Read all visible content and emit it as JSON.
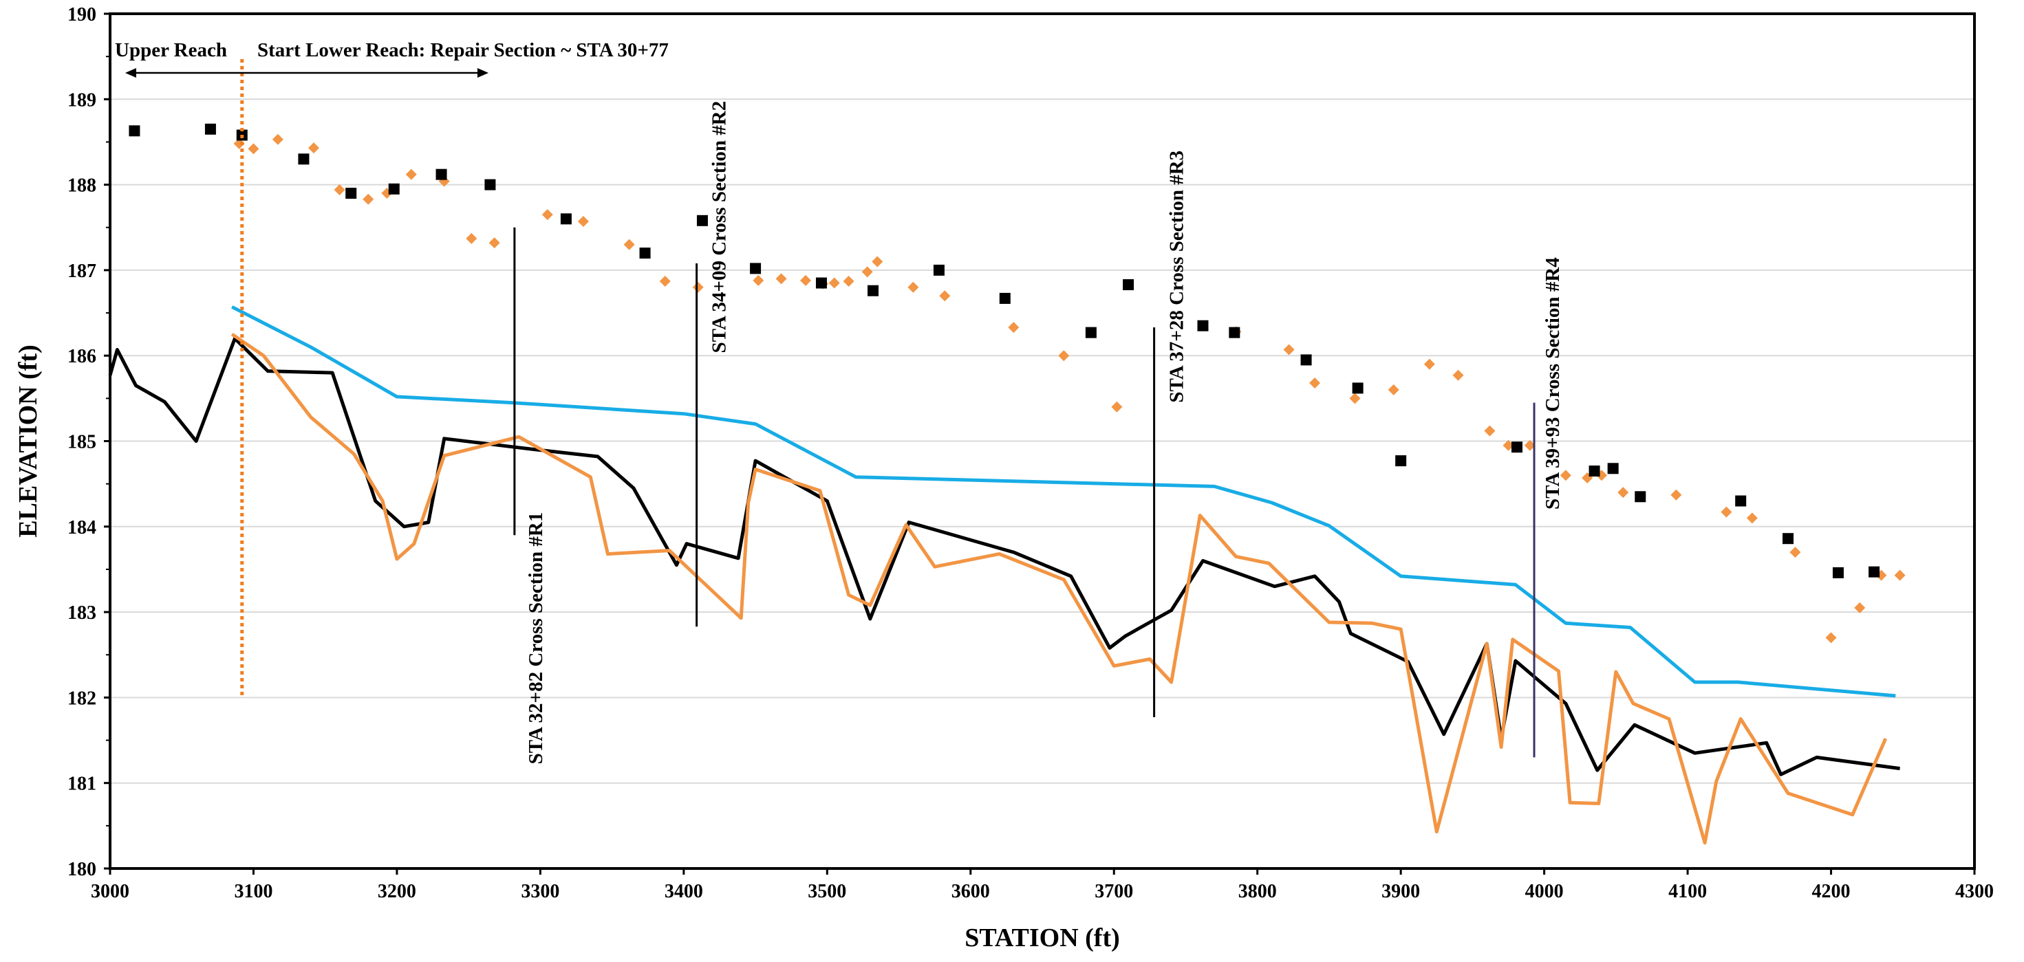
{
  "chart_data": {
    "type": "line",
    "title": "",
    "xlabel": "STATION (ft)",
    "ylabel": "ELEVATION (ft)",
    "xlim": [
      3000,
      4300
    ],
    "ylim": [
      180,
      190
    ],
    "xticks": [
      3000,
      3100,
      3200,
      3300,
      3400,
      3500,
      3600,
      3700,
      3800,
      3900,
      4000,
      4100,
      4200,
      4300
    ],
    "yticks": [
      180,
      181,
      182,
      183,
      184,
      185,
      186,
      187,
      188,
      189,
      190
    ],
    "grid": "horizontal",
    "legend": "none",
    "series": [
      {
        "kind": "line",
        "color": "#18ace6",
        "x": [
          3085,
          3140,
          3200,
          3280,
          3400,
          3450,
          3520,
          3700,
          3770,
          3810,
          3850,
          3900,
          3980,
          4015,
          4060,
          4105,
          4135,
          4245
        ],
        "y": [
          186.57,
          186.1,
          185.52,
          185.45,
          185.32,
          185.2,
          184.58,
          184.5,
          184.47,
          184.28,
          184.01,
          183.42,
          183.32,
          182.87,
          182.82,
          182.18,
          182.18,
          182.02
        ]
      },
      {
        "kind": "line",
        "color": "#000000",
        "x": [
          3000,
          3005,
          3018,
          3038,
          3060,
          3087,
          3110,
          3155,
          3185,
          3205,
          3222,
          3233,
          3297,
          3340,
          3365,
          3395,
          3402,
          3438,
          3450,
          3500,
          3530,
          3557,
          3630,
          3670,
          3697,
          3708,
          3725,
          3740,
          3762,
          3812,
          3840,
          3857,
          3865,
          3905,
          3930,
          3960,
          3970,
          3980,
          4015,
          4037,
          4063,
          4105,
          4155,
          4165,
          4190,
          4248
        ],
        "y": [
          185.77,
          186.07,
          185.65,
          185.46,
          185.0,
          186.2,
          185.82,
          185.8,
          184.3,
          184.0,
          184.05,
          185.03,
          184.9,
          184.82,
          184.45,
          183.55,
          183.8,
          183.63,
          184.77,
          184.3,
          182.92,
          184.05,
          183.7,
          183.42,
          182.58,
          182.72,
          182.88,
          183.02,
          183.6,
          183.3,
          183.42,
          183.12,
          182.75,
          182.42,
          181.57,
          182.63,
          181.52,
          182.43,
          181.93,
          181.15,
          181.68,
          181.35,
          181.47,
          181.1,
          181.3,
          181.17
        ]
      },
      {
        "kind": "line",
        "color": "#f29544",
        "x": [
          3085,
          3107,
          3140,
          3170,
          3190,
          3200,
          3212,
          3233,
          3285,
          3335,
          3347,
          3390,
          3440,
          3445,
          3450,
          3495,
          3515,
          3530,
          3555,
          3575,
          3620,
          3665,
          3700,
          3725,
          3740,
          3760,
          3785,
          3808,
          3850,
          3880,
          3900,
          3925,
          3960,
          3970,
          3978,
          4010,
          4018,
          4038,
          4050,
          4062,
          4087,
          4112,
          4120,
          4137,
          4170,
          4215,
          4238
        ],
        "y": [
          186.25,
          186.0,
          185.28,
          184.85,
          184.3,
          183.62,
          183.8,
          184.83,
          185.05,
          184.58,
          183.68,
          183.72,
          182.93,
          184.28,
          184.67,
          184.42,
          183.2,
          183.08,
          184.02,
          183.53,
          183.68,
          183.38,
          182.37,
          182.45,
          182.18,
          184.13,
          183.65,
          183.57,
          182.88,
          182.87,
          182.8,
          180.43,
          182.63,
          181.42,
          182.68,
          182.31,
          180.77,
          180.76,
          182.3,
          181.93,
          181.75,
          180.3,
          181.02,
          181.75,
          180.88,
          180.63,
          181.52
        ]
      },
      {
        "kind": "scatter",
        "marker": "diamond",
        "color": "#f29544",
        "x": [
          3090,
          3100,
          3117,
          3142,
          3160,
          3180,
          3193,
          3210,
          3233,
          3252,
          3268,
          3305,
          3330,
          3362,
          3387,
          3410,
          3452,
          3468,
          3485,
          3497,
          3505,
          3515,
          3528,
          3535,
          3560,
          3582,
          3630,
          3665,
          3702,
          3785,
          3822,
          3840,
          3868,
          3895,
          3920,
          3940,
          3962,
          3975,
          3990,
          4015,
          4030,
          4040,
          4055,
          4092,
          4127,
          4145,
          4175,
          4200,
          4220,
          4235,
          4248
        ],
        "y": [
          188.48,
          188.42,
          188.53,
          188.43,
          187.94,
          187.83,
          187.9,
          188.12,
          188.04,
          187.37,
          187.32,
          187.65,
          187.57,
          187.3,
          186.87,
          186.8,
          186.88,
          186.9,
          186.88,
          186.84,
          186.85,
          186.87,
          186.98,
          187.1,
          186.8,
          186.7,
          186.33,
          186.0,
          185.4,
          186.28,
          186.07,
          185.68,
          185.5,
          185.6,
          185.9,
          185.77,
          185.12,
          184.95,
          184.95,
          184.6,
          184.57,
          184.6,
          184.4,
          184.37,
          184.17,
          184.1,
          183.7,
          182.7,
          183.05,
          183.43,
          183.43
        ]
      },
      {
        "kind": "scatter",
        "marker": "square",
        "color": "#000000",
        "x": [
          3017,
          3070,
          3092,
          3135,
          3168,
          3198,
          3231,
          3265,
          3318,
          3373,
          3413,
          3450,
          3496,
          3532,
          3578,
          3624,
          3684,
          3710,
          3762,
          3784,
          3834,
          3870,
          3900,
          3981,
          4035,
          4048,
          4067,
          4137,
          4170,
          4205,
          4230
        ],
        "y": [
          188.63,
          188.65,
          188.58,
          188.3,
          187.9,
          187.95,
          188.12,
          188.0,
          187.6,
          187.2,
          187.58,
          187.02,
          186.85,
          186.76,
          187.0,
          186.67,
          186.27,
          186.83,
          186.35,
          186.27,
          185.95,
          185.62,
          184.77,
          184.93,
          184.65,
          184.68,
          184.35,
          184.3,
          183.86,
          183.46,
          183.47
        ]
      }
    ],
    "annotations": {
      "upper_reach": "Upper Reach",
      "start_lower_reach": "Start Lower Reach: Repair Section ~ STA 30+77",
      "divider_station": 3092,
      "cross_sections": [
        {
          "station": 3282,
          "label": "STA 32+82 Cross Section  #R1",
          "y_top": 187.5,
          "y_bottom": 183.9
        },
        {
          "station": 3409,
          "label": "STA 34+09  Cross Section  #R2",
          "y_top": 187.08,
          "y_bottom": 182.83
        },
        {
          "station": 3728,
          "label": "STA 37+28 Cross Section  #R3",
          "y_top": 186.33,
          "y_bottom": 181.77
        },
        {
          "station": 3993,
          "label": "STA 39+93 Cross Section  #R4",
          "y_top": 185.45,
          "y_bottom": 181.3
        }
      ]
    }
  }
}
